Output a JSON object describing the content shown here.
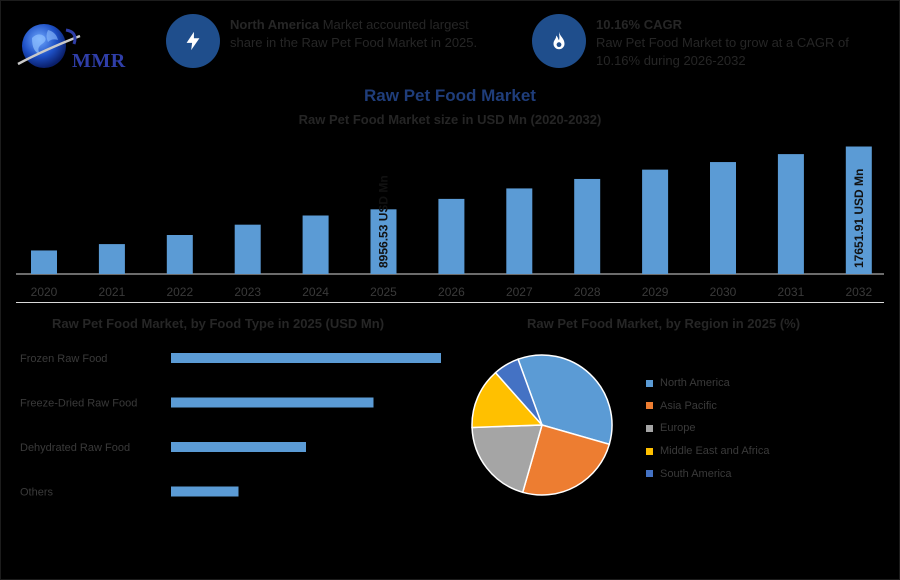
{
  "header": {
    "logo_text": "MMR",
    "info1": {
      "bold": "North America",
      "text": " Market accounted largest share in the Raw Pet Food Market in 2025."
    },
    "info2": {
      "bold": "10.16% CAGR",
      "text": "Raw Pet Food Market to grow at a CAGR of 10.16% during 2026-2032"
    }
  },
  "colors": {
    "bar": "#5b9bd5",
    "icon_bg": "#1f4e8c",
    "title": "#1f3d7a",
    "north_america": "#5b9bd5",
    "asia_pacific": "#ed7d31",
    "europe": "#a5a5a5",
    "middle_east_africa": "#ffc000",
    "south_america": "#4472c4"
  },
  "icons": {
    "info1": "lightning-icon",
    "info2": "flame-icon",
    "logo": "globe-icon"
  },
  "chart_data": [
    {
      "type": "bar",
      "title": "Raw Pet Food Market",
      "subtitle": "Raw Pet Food Market size in USD Mn (2020-2032)",
      "categories": [
        "2020",
        "2021",
        "2022",
        "2023",
        "2024",
        "2025",
        "2026",
        "2027",
        "2028",
        "2029",
        "2030",
        "2031",
        "2032"
      ],
      "values": [
        3260,
        4140,
        5400,
        6830,
        8100,
        8956.53,
        10400,
        11850,
        13160,
        14450,
        15500,
        16600,
        17651.91
      ],
      "data_labels": {
        "5": "8956.53 USD Mn",
        "12": "17651.91 USD Mn"
      },
      "ylim": [
        0,
        18000
      ],
      "grid": false,
      "legend": "none"
    },
    {
      "type": "bar",
      "orientation": "horizontal",
      "title": "Raw Pet Food Market, by Food Type in 2025 (USD Mn)",
      "categories": [
        "Frozen Raw Food",
        "Freeze-Dried Raw Food",
        "Dehydrated Raw Food",
        "Others"
      ],
      "values": [
        100,
        75,
        50,
        25
      ],
      "grid": false,
      "legend": "none"
    },
    {
      "type": "pie",
      "title": "Raw Pet Food Market, by Region in 2025 (%)",
      "categories": [
        "North America",
        "Asia Pacific",
        "Europe",
        "Middle East and Africa",
        "South America"
      ],
      "values": [
        35,
        25,
        20,
        14,
        6
      ],
      "legend": "right"
    }
  ]
}
